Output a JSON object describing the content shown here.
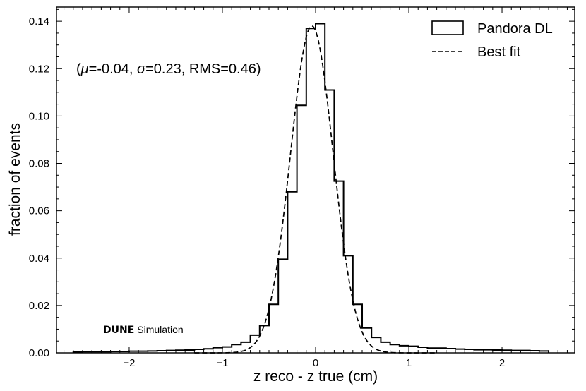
{
  "chart_data": {
    "type": "histogram",
    "xlabel": "z reco - z true (cm)",
    "ylabel": "fraction of events",
    "xlim": [
      -2.78,
      2.78
    ],
    "ylim": [
      0,
      0.146
    ],
    "xticks": [
      -2,
      -1,
      0,
      1,
      2
    ],
    "xtick_labels": [
      "−2",
      "−1",
      "0",
      "1",
      "2"
    ],
    "yticks": [
      0.0,
      0.02,
      0.04,
      0.06,
      0.08,
      0.1,
      0.12,
      0.14
    ],
    "ytick_labels": [
      "0.00",
      "0.02",
      "0.04",
      "0.06",
      "0.08",
      "0.10",
      "0.12",
      "0.14"
    ],
    "grid": false,
    "legend_position": "top-right",
    "annotation": {
      "open": "(",
      "mu_symbol": "μ",
      "mu_value": "=-0.04, ",
      "sigma_symbol": "σ",
      "sigma_value": "=0.23, RMS=0.46)"
    },
    "watermark": {
      "bold": "DUNE",
      "normal": "Simulation"
    },
    "series": [
      {
        "name": "Pandora DL",
        "style": "step",
        "color": "#000000",
        "bin_edges": [
          -2.6,
          -2.5,
          -2.4,
          -2.3,
          -2.2,
          -2.1,
          -2.0,
          -1.9,
          -1.8,
          -1.7,
          -1.6,
          -1.5,
          -1.4,
          -1.3,
          -1.2,
          -1.1,
          -1.0,
          -0.9,
          -0.8,
          -0.7,
          -0.6,
          -0.5,
          -0.4,
          -0.3,
          -0.2,
          -0.1,
          0.0,
          0.1,
          0.2,
          0.3,
          0.4,
          0.5,
          0.6,
          0.7,
          0.8,
          0.9,
          1.0,
          1.1,
          1.2,
          1.3,
          1.4,
          1.5,
          1.6,
          1.7,
          1.8,
          1.9,
          2.0,
          2.1,
          2.2,
          2.3,
          2.4,
          2.5
        ],
        "values": [
          0.0004,
          0.0005,
          0.0005,
          0.0005,
          0.0006,
          0.0006,
          0.0007,
          0.0007,
          0.0008,
          0.0009,
          0.001,
          0.0011,
          0.0012,
          0.0015,
          0.0017,
          0.0022,
          0.0025,
          0.0035,
          0.0045,
          0.0075,
          0.0115,
          0.0205,
          0.0395,
          0.068,
          0.1045,
          0.137,
          0.139,
          0.111,
          0.0725,
          0.041,
          0.0205,
          0.0105,
          0.0065,
          0.0045,
          0.0035,
          0.003,
          0.0028,
          0.0024,
          0.002,
          0.002,
          0.0018,
          0.0016,
          0.0015,
          0.0013,
          0.0013,
          0.0012,
          0.0011,
          0.001,
          0.001,
          0.0009,
          0.0008
        ]
      },
      {
        "name": "Best fit",
        "style": "dashed",
        "color": "#000000",
        "function": "gaussian",
        "mu": -0.04,
        "sigma": 0.23,
        "amplitude": 0.138,
        "x_range": [
          -1.3,
          1.3
        ]
      }
    ]
  }
}
